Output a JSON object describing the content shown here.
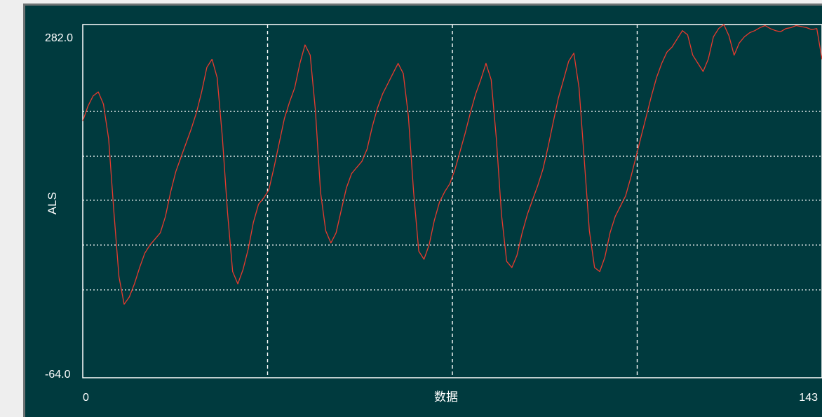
{
  "chart_data": {
    "type": "line",
    "title": "",
    "xlabel": "数据",
    "ylabel": "ALS",
    "xlim": [
      0,
      143
    ],
    "ylim": [
      -64.0,
      282.0
    ],
    "x_tick_labels": [
      "0",
      "143"
    ],
    "y_tick_labels": [
      "282.0",
      "-64.0"
    ],
    "grid": true,
    "x_grid_values": [
      35.75,
      71.5,
      107.25
    ],
    "y_grid_values": [
      197.0,
      153.0,
      110.0,
      66.0,
      22.0
    ],
    "colors": {
      "background": "#003a3e",
      "series": "#e83a2e",
      "grid": "#ffffff",
      "text": "#ffffff"
    },
    "series": [
      {
        "x": [
          0,
          1,
          2,
          3,
          4,
          5,
          6,
          7,
          8,
          9,
          10,
          11,
          12,
          13,
          14,
          15,
          16,
          17,
          18,
          19,
          20,
          21,
          22,
          23,
          24,
          25,
          26,
          27,
          28,
          29,
          30,
          31,
          32,
          33,
          34,
          35,
          36,
          37,
          38,
          39,
          40,
          41,
          42,
          43,
          44,
          45,
          46,
          47,
          48,
          49,
          50,
          51,
          52,
          53,
          54,
          55,
          56,
          57,
          58,
          59,
          60,
          61,
          62,
          63,
          64,
          65,
          66,
          67,
          68,
          69,
          70,
          71,
          72,
          73,
          74,
          75,
          76,
          77,
          78,
          79,
          80,
          81,
          82,
          83,
          84,
          85,
          86,
          87,
          88,
          89,
          90,
          91,
          92,
          93,
          94,
          95,
          96,
          97,
          98,
          99,
          100,
          101,
          102,
          103,
          104,
          105,
          106,
          107,
          108,
          109,
          110,
          111,
          112,
          113,
          114,
          115,
          116,
          117,
          118,
          119,
          120,
          121,
          122,
          123,
          124,
          125,
          126,
          127,
          128,
          129,
          130,
          131,
          132,
          133,
          134,
          135,
          136,
          137,
          138,
          139,
          140,
          141,
          142,
          143
        ],
        "values": [
          187.5,
          202,
          212,
          216,
          204,
          170,
          100,
          35,
          8,
          15,
          28,
          44,
          58,
          66,
          72,
          78,
          94,
          118,
          138,
          152,
          166,
          180,
          196,
          216,
          240,
          248,
          230,
          172,
          98,
          40,
          28,
          42,
          62,
          88,
          106,
          112,
          120,
          142,
          166,
          190,
          206,
          220,
          244,
          262,
          252,
          198,
          118,
          80,
          68,
          78,
          100,
          122,
          136,
          142,
          148,
          160,
          182,
          200,
          214,
          224,
          234,
          244,
          234,
          192,
          118,
          60,
          52,
          66,
          90,
          108,
          118,
          126,
          140,
          158,
          176,
          196,
          214,
          228,
          244,
          228,
          170,
          96,
          50,
          44,
          56,
          78,
          96,
          110,
          124,
          140,
          162,
          186,
          210,
          228,
          246,
          254,
          220,
          150,
          80,
          44,
          40,
          54,
          78,
          94,
          104,
          114,
          132,
          152,
          172,
          192,
          212,
          230,
          244,
          255,
          260,
          268,
          276,
          272,
          252,
          244,
          236,
          248,
          270,
          278,
          282,
          271,
          252,
          264,
          270,
          274,
          276,
          279,
          281,
          278,
          276,
          275,
          278,
          279,
          281,
          280,
          279,
          277,
          278,
          248
        ]
      }
    ]
  }
}
